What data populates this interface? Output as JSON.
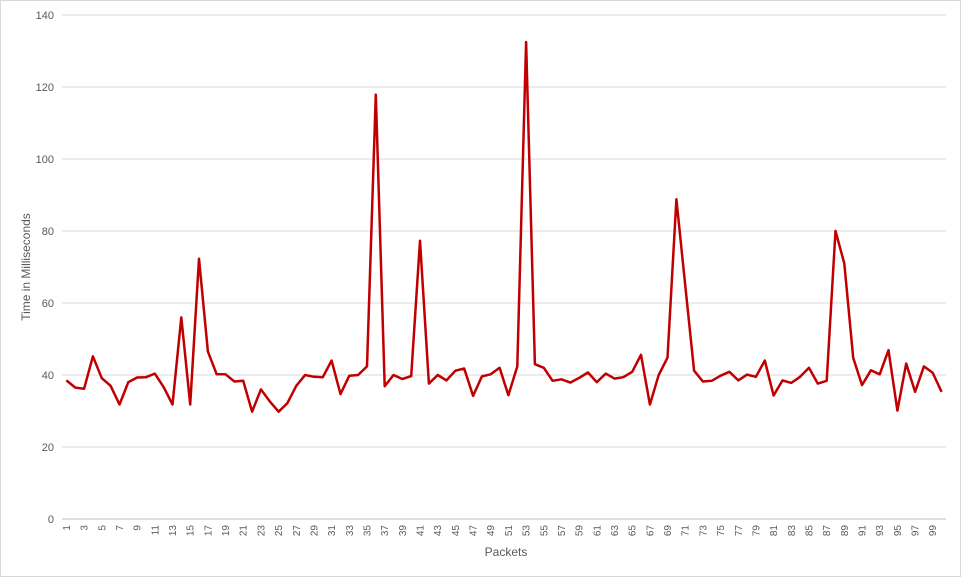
{
  "chart_data": {
    "type": "line",
    "title": "",
    "xlabel": "Packets",
    "ylabel": "Time in Milliseconds",
    "ylim": [
      0,
      140
    ],
    "yticks": [
      0,
      20,
      40,
      60,
      80,
      100,
      120,
      140
    ],
    "xtick_labels": [
      "1",
      "3",
      "5",
      "7",
      "9",
      "11",
      "13",
      "15",
      "17",
      "19",
      "21",
      "23",
      "25",
      "27",
      "29",
      "31",
      "33",
      "35",
      "37",
      "39",
      "41",
      "43",
      "45",
      "47",
      "49",
      "51",
      "53",
      "55",
      "57",
      "59",
      "61",
      "63",
      "65",
      "67",
      "69",
      "71",
      "73",
      "75",
      "77",
      "79",
      "81",
      "83",
      "85",
      "87",
      "89",
      "91",
      "93",
      "95",
      "97",
      "99"
    ],
    "grid": true,
    "line_color": "#c00000",
    "series": [
      {
        "values": [
          38.5,
          36.5,
          36.2,
          45.2,
          39.1,
          37.0,
          31.8,
          38.0,
          39.3,
          39.4,
          40.4,
          36.6,
          31.8,
          56.0,
          31.8,
          72.3,
          46.5,
          40.2,
          40.2,
          38.2,
          38.4,
          29.8,
          36.0,
          32.7,
          29.8,
          32.2,
          37.0,
          40.0,
          39.5,
          39.4,
          44.0,
          34.7,
          39.8,
          40.0,
          42.4,
          117.9,
          36.9,
          40.0,
          38.9,
          39.7,
          77.3,
          37.6,
          40.0,
          38.5,
          41.2,
          41.8,
          34.2,
          39.6,
          40.2,
          42.0,
          34.4,
          42.4,
          132.5,
          43.0,
          42.0,
          38.4,
          38.8,
          37.9,
          39.2,
          40.7,
          38.0,
          40.4,
          39.0,
          39.4,
          40.9,
          45.6,
          31.8,
          40.0,
          44.8,
          88.8,
          65.0,
          41.2,
          38.2,
          38.4,
          39.8,
          40.9,
          38.5,
          40.1,
          39.5,
          44.0,
          34.3,
          38.5,
          37.8,
          39.5,
          42.0,
          37.6,
          38.4,
          80.0,
          71.0,
          44.8,
          37.2,
          41.3,
          40.2,
          46.9,
          30.1,
          43.2,
          35.3,
          42.4,
          40.6,
          35.3
        ]
      }
    ]
  }
}
